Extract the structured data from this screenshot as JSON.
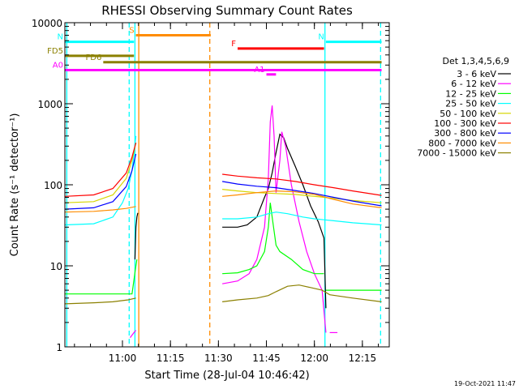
{
  "chart_data": {
    "type": "line",
    "title": "RHESSI Observing Summary Count Rates",
    "xlabel": "Start Time (28-Jul-04 10:46:42)",
    "ylabel": "Count Rate (s⁻¹ detector⁻¹)",
    "yscale": "log",
    "ylim": [
      1,
      10000
    ],
    "xlim_minutes": [
      10.7,
      12.39
    ],
    "x_unit": "hours",
    "x_ticks": [
      {
        "value": 11.0,
        "label": "11:00"
      },
      {
        "value": 11.25,
        "label": "11:15"
      },
      {
        "value": 11.5,
        "label": "11:30"
      },
      {
        "value": 11.75,
        "label": "11:45"
      },
      {
        "value": 12.0,
        "label": "12:00"
      },
      {
        "value": 12.25,
        "label": "12:15"
      }
    ],
    "y_ticks": [
      {
        "value": 1,
        "label": "1"
      },
      {
        "value": 10,
        "label": "10"
      },
      {
        "value": 100,
        "label": "100"
      },
      {
        "value": 1000,
        "label": "1000"
      },
      {
        "value": 10000,
        "label": "10000"
      }
    ],
    "legend_title": "Det 1,3,4,5,6,9",
    "series": [
      {
        "name": "3 - 6 keV",
        "color": "#000000",
        "points": [
          [
            11.065,
            12
          ],
          [
            11.07,
            30
          ],
          [
            11.075,
            40
          ],
          [
            11.08,
            45
          ],
          [
            null,
            null
          ],
          [
            11.52,
            30
          ],
          [
            11.6,
            30
          ],
          [
            11.65,
            32
          ],
          [
            11.7,
            40
          ],
          [
            11.74,
            70
          ],
          [
            11.76,
            90
          ],
          [
            11.78,
            140
          ],
          [
            11.8,
            250
          ],
          [
            11.82,
            420
          ],
          [
            11.84,
            380
          ],
          [
            11.86,
            280
          ],
          [
            11.9,
            170
          ],
          [
            11.94,
            100
          ],
          [
            11.98,
            55
          ],
          [
            12.02,
            35
          ],
          [
            12.05,
            22
          ],
          [
            12.06,
            3
          ]
        ]
      },
      {
        "name": "6 - 12 keV",
        "color": "#ff00ff",
        "points": [
          [
            11.04,
            1.3
          ],
          [
            11.06,
            1.5
          ],
          [
            11.07,
            1.6
          ],
          [
            null,
            null
          ],
          [
            11.52,
            6
          ],
          [
            11.6,
            6.5
          ],
          [
            11.66,
            8
          ],
          [
            11.7,
            12
          ],
          [
            11.74,
            30
          ],
          [
            11.76,
            120
          ],
          [
            11.77,
            600
          ],
          [
            11.78,
            950
          ],
          [
            11.79,
            400
          ],
          [
            11.8,
            80
          ],
          [
            11.82,
            200
          ],
          [
            11.83,
            450
          ],
          [
            11.85,
            300
          ],
          [
            11.88,
            100
          ],
          [
            11.92,
            35
          ],
          [
            11.96,
            15
          ],
          [
            12.0,
            8
          ],
          [
            12.04,
            5
          ],
          [
            12.06,
            1.5
          ],
          [
            null,
            null
          ],
          [
            12.08,
            1.5
          ],
          [
            12.12,
            1.5
          ]
        ]
      },
      {
        "name": "12 - 25 keV",
        "color": "#00ff00",
        "points": [
          [
            10.7,
            4.5
          ],
          [
            10.9,
            4.5
          ],
          [
            11.05,
            4.5
          ],
          [
            11.07,
            10
          ],
          [
            11.075,
            12
          ],
          [
            null,
            null
          ],
          [
            11.52,
            8
          ],
          [
            11.6,
            8.2
          ],
          [
            11.66,
            9
          ],
          [
            11.7,
            10
          ],
          [
            11.74,
            15
          ],
          [
            11.76,
            30
          ],
          [
            11.77,
            60
          ],
          [
            11.78,
            40
          ],
          [
            11.8,
            18
          ],
          [
            11.82,
            15
          ],
          [
            11.88,
            12
          ],
          [
            11.94,
            9
          ],
          [
            12.0,
            8
          ],
          [
            12.05,
            8
          ],
          [
            null,
            null
          ],
          [
            12.06,
            5
          ],
          [
            12.2,
            5
          ],
          [
            12.35,
            5
          ]
        ]
      },
      {
        "name": "25 - 50 keV",
        "color": "#00ffff",
        "points": [
          [
            10.7,
            32
          ],
          [
            10.85,
            33
          ],
          [
            10.95,
            40
          ],
          [
            11.0,
            60
          ],
          [
            11.03,
            90
          ],
          [
            11.05,
            150
          ],
          [
            11.07,
            400
          ],
          [
            null,
            null
          ],
          [
            11.52,
            38
          ],
          [
            11.6,
            38
          ],
          [
            11.7,
            40
          ],
          [
            11.76,
            44
          ],
          [
            11.8,
            46
          ],
          [
            11.86,
            44
          ],
          [
            11.94,
            40
          ],
          [
            12.0,
            38
          ],
          [
            12.05,
            37
          ],
          [
            12.1,
            36
          ],
          [
            12.2,
            34
          ],
          [
            12.35,
            32
          ]
        ]
      },
      {
        "name": "50 - 100 keV",
        "color": "#d6d600",
        "points": [
          [
            10.7,
            60
          ],
          [
            10.85,
            62
          ],
          [
            10.95,
            75
          ],
          [
            11.02,
            120
          ],
          [
            11.05,
            200
          ],
          [
            11.07,
            330
          ],
          [
            null,
            null
          ],
          [
            11.52,
            88
          ],
          [
            11.6,
            84
          ],
          [
            11.7,
            80
          ],
          [
            11.8,
            78
          ],
          [
            11.9,
            76
          ],
          [
            12.0,
            72
          ],
          [
            12.1,
            68
          ],
          [
            12.2,
            64
          ],
          [
            12.35,
            60
          ]
        ]
      },
      {
        "name": "100 - 300 keV",
        "color": "#ff0000",
        "points": [
          [
            10.7,
            72
          ],
          [
            10.85,
            75
          ],
          [
            10.95,
            90
          ],
          [
            11.02,
            140
          ],
          [
            11.05,
            220
          ],
          [
            11.07,
            330
          ],
          [
            null,
            null
          ],
          [
            11.52,
            135
          ],
          [
            11.6,
            128
          ],
          [
            11.7,
            122
          ],
          [
            11.8,
            118
          ],
          [
            11.9,
            110
          ],
          [
            12.0,
            100
          ],
          [
            12.1,
            92
          ],
          [
            12.2,
            84
          ],
          [
            12.35,
            74
          ]
        ]
      },
      {
        "name": "300 - 800 keV",
        "color": "#0000ff",
        "points": [
          [
            10.7,
            50
          ],
          [
            10.85,
            52
          ],
          [
            10.95,
            62
          ],
          [
            11.02,
            95
          ],
          [
            11.05,
            150
          ],
          [
            11.07,
            240
          ],
          [
            null,
            null
          ],
          [
            11.52,
            110
          ],
          [
            11.6,
            102
          ],
          [
            11.7,
            96
          ],
          [
            11.8,
            92
          ],
          [
            11.9,
            85
          ],
          [
            12.0,
            78
          ],
          [
            12.1,
            70
          ],
          [
            12.2,
            63
          ],
          [
            12.35,
            55
          ]
        ]
      },
      {
        "name": "800 - 7000 keV",
        "color": "#ff8c00",
        "points": [
          [
            10.7,
            46
          ],
          [
            10.85,
            47
          ],
          [
            10.95,
            49
          ],
          [
            11.02,
            51
          ],
          [
            11.07,
            54
          ],
          [
            null,
            null
          ],
          [
            11.52,
            72
          ],
          [
            11.6,
            75
          ],
          [
            11.7,
            80
          ],
          [
            11.8,
            84
          ],
          [
            11.9,
            82
          ],
          [
            12.0,
            76
          ],
          [
            12.1,
            66
          ],
          [
            12.2,
            58
          ],
          [
            12.35,
            52
          ]
        ]
      },
      {
        "name": "7000 - 15000 keV",
        "color": "#8b8000",
        "points": [
          [
            10.7,
            3.4
          ],
          [
            10.85,
            3.5
          ],
          [
            10.95,
            3.6
          ],
          [
            11.03,
            3.8
          ],
          [
            11.07,
            4
          ],
          [
            null,
            null
          ],
          [
            11.52,
            3.6
          ],
          [
            11.6,
            3.8
          ],
          [
            11.7,
            4.0
          ],
          [
            11.76,
            4.3
          ],
          [
            11.8,
            4.8
          ],
          [
            11.86,
            5.6
          ],
          [
            11.92,
            5.8
          ],
          [
            11.98,
            5.4
          ],
          [
            12.04,
            5.0
          ],
          [
            12.08,
            4.4
          ],
          [
            12.2,
            4.0
          ],
          [
            12.35,
            3.6
          ]
        ]
      }
    ],
    "annotations": [
      {
        "label": "S",
        "color": "#ff8c00",
        "x_start": 11.07,
        "x_end": 11.46,
        "y": 7000
      },
      {
        "label": "F",
        "color": "#ff0000",
        "x_start": 11.6,
        "x_end": 12.05,
        "y": 4800
      },
      {
        "label": "N",
        "color": "#00ffff",
        "x_start": 10.7,
        "x_end": 11.06,
        "y": 5800
      },
      {
        "label": "N",
        "color": "#00ffff",
        "x_start": 12.06,
        "x_end": 12.35,
        "y": 5800
      },
      {
        "label": "FD5",
        "color": "#8b8000",
        "x_start": 10.7,
        "x_end": 11.06,
        "y": 3900
      },
      {
        "label": "FD6",
        "color": "#8b8000",
        "x_start": 10.9,
        "x_end": 12.35,
        "y": 3250
      },
      {
        "label": "A0",
        "color": "#ff00ff",
        "x_start": 10.7,
        "x_end": 12.35,
        "y": 2600
      },
      {
        "label": "A1",
        "color": "#ff00ff",
        "x_start": 11.75,
        "x_end": 11.8,
        "y": 2300
      }
    ],
    "vertical_markers": [
      {
        "x": 10.71,
        "color": "#00ffff",
        "style": "solid"
      },
      {
        "x": 11.035,
        "color": "#00ffff",
        "style": "dashed"
      },
      {
        "x": 11.065,
        "color": "#00ffff",
        "style": "solid"
      },
      {
        "x": 11.085,
        "color": "#ff8c00",
        "style": "solid"
      },
      {
        "x": 11.455,
        "color": "#ff8c00",
        "style": "dashed"
      },
      {
        "x": 12.055,
        "color": "#00ffff",
        "style": "solid"
      },
      {
        "x": 12.345,
        "color": "#00ffff",
        "style": "dashed"
      }
    ]
  },
  "footer": {
    "timestamp": "19-Oct-2021 11:47"
  }
}
